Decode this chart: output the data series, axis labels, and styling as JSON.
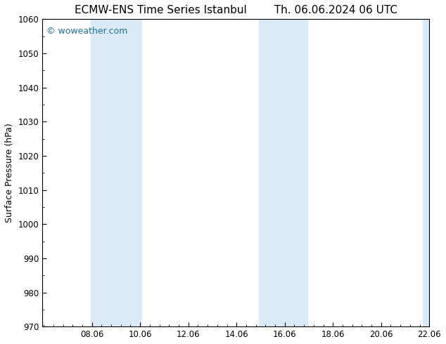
{
  "title_left": "ECMW-ENS Time Series Istanbul",
  "title_right": "Th. 06.06.2024 06 UTC",
  "ylabel": "Surface Pressure (hPa)",
  "ylim": [
    970,
    1060
  ],
  "yticks": [
    970,
    980,
    990,
    1000,
    1010,
    1020,
    1030,
    1040,
    1050,
    1060
  ],
  "xlim": [
    6.0,
    22.06
  ],
  "xticks": [
    8.06,
    10.06,
    12.06,
    14.06,
    16.06,
    18.06,
    20.06,
    22.06
  ],
  "xticklabels": [
    "08.06",
    "10.06",
    "12.06",
    "14.06",
    "16.06",
    "18.06",
    "20.06",
    "22.06"
  ],
  "shaded_bands": [
    {
      "xmin": 8.0,
      "xmax": 9.05
    },
    {
      "xmin": 9.05,
      "xmax": 10.1
    },
    {
      "xmin": 15.0,
      "xmax": 15.9
    },
    {
      "xmin": 15.9,
      "xmax": 17.0
    },
    {
      "xmin": 21.8,
      "xmax": 22.06
    }
  ],
  "shade_color": "#daeaf6",
  "background_color": "#ffffff",
  "watermark": "© woweather.com",
  "watermark_color": "#2471a3",
  "title_fontsize": 11,
  "label_fontsize": 9,
  "tick_fontsize": 8.5,
  "watermark_fontsize": 9
}
